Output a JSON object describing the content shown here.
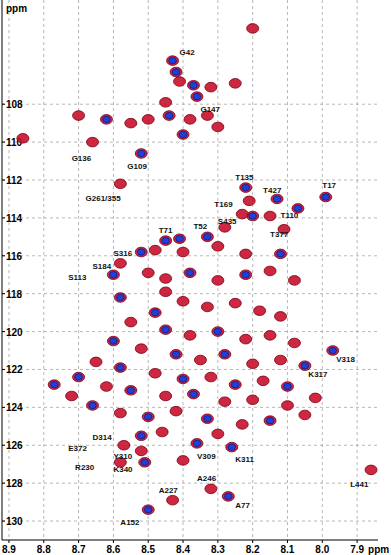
{
  "chart_data": {
    "type": "scatter",
    "x_label": "ppm",
    "y_label": "ppm",
    "xlim": [
      8.92,
      7.84
    ],
    "ylim": [
      131,
      102.5
    ],
    "xticks": [
      8.9,
      8.8,
      8.7,
      8.6,
      8.5,
      8.4,
      8.3,
      8.2,
      8.1,
      {
        "value": 8,
        "label": "8.0"
      },
      7.9
    ],
    "yticks": [
      108,
      110,
      112,
      114,
      116,
      118,
      120,
      122,
      124,
      126,
      128,
      130
    ],
    "grid": true,
    "series": [
      {
        "color": "#c8102e",
        "marker": "ellipse",
        "x": [
          8.43,
          8.36,
          8.66,
          8.52,
          8.58,
          8.22,
          8.21,
          8.13,
          7.99,
          8.07,
          8.2,
          8.11,
          8.48,
          8.41,
          8.33,
          8.58,
          8.6,
          7.97,
          8.05,
          8.52,
          8.57,
          8.52,
          8.58,
          8.51,
          8.36,
          8.26,
          8.32,
          8.43,
          8.27,
          8.5,
          7.86,
          8.2,
          8.42,
          8.41,
          8.37,
          8.32,
          8.25,
          8.45,
          8.7,
          8.62,
          8.55,
          8.5,
          8.44,
          8.38,
          8.33,
          8.4,
          8.3,
          8.86,
          8.23,
          8.15,
          8.28,
          8.45,
          8.52,
          8.4,
          8.3,
          8.22,
          8.12,
          8.5,
          8.45,
          8.38,
          8.3,
          8.22,
          8.15,
          8.08,
          8.4,
          8.33,
          8.25,
          8.18,
          8.12,
          8.48,
          8.55,
          8.45,
          8.38,
          8.3,
          8.22,
          8.15,
          8.08,
          8.6,
          8.52,
          8.42,
          8.35,
          8.28,
          8.2,
          8.12,
          8.65,
          8.58,
          8.48,
          8.4,
          8.32,
          8.25,
          8.17,
          8.7,
          8.62,
          8.55,
          8.45,
          8.37,
          8.28,
          8.2,
          8.1,
          8.66,
          8.58,
          8.5,
          8.42,
          8.33,
          8.23,
          8.15,
          8.05,
          8.46,
          8.3,
          8.4,
          8.77,
          8.72,
          8.1,
          8.02,
          8.58,
          8.45
        ],
        "values": [
          105.7,
          107.6,
          110.0,
          110.6,
          112.2,
          112.4,
          113.1,
          113.0,
          112.9,
          113.5,
          113.9,
          114.6,
          115.7,
          115.1,
          115.0,
          116.4,
          117.0,
          121.0,
          121.8,
          125.5,
          126.0,
          126.3,
          126.9,
          126.9,
          125.9,
          126.1,
          128.3,
          128.9,
          128.7,
          129.4,
          127.3,
          104.0,
          106.3,
          106.8,
          107.0,
          107.1,
          106.9,
          107.9,
          108.6,
          108.8,
          109.0,
          108.8,
          108.6,
          108.8,
          108.6,
          109.6,
          109.2,
          109.8,
          113.8,
          113.9,
          114.5,
          115.2,
          115.8,
          115.8,
          115.5,
          115.9,
          115.9,
          116.9,
          117.2,
          116.9,
          117.3,
          117.0,
          116.8,
          117.3,
          118.4,
          118.7,
          118.5,
          118.9,
          119.2,
          119.0,
          119.5,
          119.9,
          120.2,
          120.0,
          120.4,
          120.2,
          120.6,
          120.5,
          120.9,
          121.2,
          121.5,
          121.2,
          121.7,
          121.5,
          121.6,
          121.9,
          122.2,
          122.5,
          122.4,
          122.8,
          122.6,
          122.4,
          122.9,
          123.1,
          123.4,
          123.3,
          123.7,
          123.6,
          123.9,
          123.9,
          124.3,
          124.5,
          124.2,
          124.6,
          124.9,
          124.7,
          124.4,
          125.3,
          125.4,
          126.8,
          122.8,
          123.4,
          122.9,
          123.5,
          118.2,
          117.9
        ]
      },
      {
        "color": "#1f3fd8",
        "marker": "ellipse",
        "x": [
          8.43,
          8.36,
          8.52,
          8.22,
          8.13,
          7.99,
          8.07,
          8.2,
          8.41,
          8.33,
          8.6,
          7.97,
          8.05,
          8.52,
          8.51,
          8.36,
          8.26,
          8.27,
          8.5,
          8.42,
          8.37,
          8.62,
          8.44,
          8.4,
          8.45,
          8.52,
          8.12,
          8.38,
          8.22,
          8.48,
          8.45,
          8.3,
          8.6,
          8.42,
          8.28,
          8.58,
          8.4,
          8.25,
          8.7,
          8.55,
          8.37,
          8.66,
          8.5,
          8.33,
          8.15,
          8.77,
          8.1,
          8.58
        ],
        "values": [
          105.7,
          107.6,
          110.6,
          112.4,
          113.0,
          112.9,
          113.5,
          113.9,
          115.1,
          115.0,
          117.0,
          121.0,
          121.8,
          125.5,
          126.9,
          125.9,
          126.1,
          128.7,
          129.4,
          106.3,
          107.0,
          108.8,
          108.6,
          109.6,
          115.2,
          115.8,
          115.9,
          116.9,
          117.0,
          119.0,
          119.9,
          120.0,
          120.5,
          121.2,
          121.2,
          121.9,
          122.5,
          122.8,
          122.4,
          123.1,
          123.3,
          123.9,
          124.5,
          124.6,
          124.7,
          122.8,
          122.9,
          118.2
        ]
      }
    ],
    "annotations": [
      {
        "text": "G42",
        "x": 8.41,
        "y": 105.4
      },
      {
        "text": "G147",
        "x": 8.35,
        "y": 108.4
      },
      {
        "text": "G136",
        "x": 8.72,
        "y": 111.0
      },
      {
        "text": "G109",
        "x": 8.56,
        "y": 111.4
      },
      {
        "text": "G261/355",
        "x": 8.68,
        "y": 113.1
      },
      {
        "text": "T135",
        "x": 8.25,
        "y": 112.0
      },
      {
        "text": "T169",
        "x": 8.31,
        "y": 113.4
      },
      {
        "text": "T427",
        "x": 8.17,
        "y": 112.7
      },
      {
        "text": "T17",
        "x": 8.0,
        "y": 112.4
      },
      {
        "text": "T110",
        "x": 8.12,
        "y": 114.0
      },
      {
        "text": "S435",
        "x": 8.3,
        "y": 114.3
      },
      {
        "text": "T377",
        "x": 8.15,
        "y": 115.0
      },
      {
        "text": "S316",
        "x": 8.6,
        "y": 116.0
      },
      {
        "text": "T71",
        "x": 8.47,
        "y": 114.8
      },
      {
        "text": "T52",
        "x": 8.37,
        "y": 114.6
      },
      {
        "text": "S184",
        "x": 8.66,
        "y": 116.7
      },
      {
        "text": "S113",
        "x": 8.73,
        "y": 117.3
      },
      {
        "text": "V318",
        "x": 7.96,
        "y": 121.6
      },
      {
        "text": "K317",
        "x": 8.04,
        "y": 122.4
      },
      {
        "text": "D314",
        "x": 8.66,
        "y": 125.7
      },
      {
        "text": "E372",
        "x": 8.73,
        "y": 126.3
      },
      {
        "text": "Y310",
        "x": 8.6,
        "y": 126.7
      },
      {
        "text": "R230",
        "x": 8.71,
        "y": 127.3
      },
      {
        "text": "K340",
        "x": 8.6,
        "y": 127.4
      },
      {
        "text": "V309",
        "x": 8.36,
        "y": 126.7
      },
      {
        "text": "K311",
        "x": 8.25,
        "y": 126.9
      },
      {
        "text": "A246",
        "x": 8.36,
        "y": 127.9
      },
      {
        "text": "A227",
        "x": 8.47,
        "y": 128.5
      },
      {
        "text": "A77",
        "x": 8.25,
        "y": 129.3
      },
      {
        "text": "A152",
        "x": 8.58,
        "y": 130.2
      },
      {
        "text": "L441",
        "x": 7.92,
        "y": 128.2
      }
    ]
  }
}
